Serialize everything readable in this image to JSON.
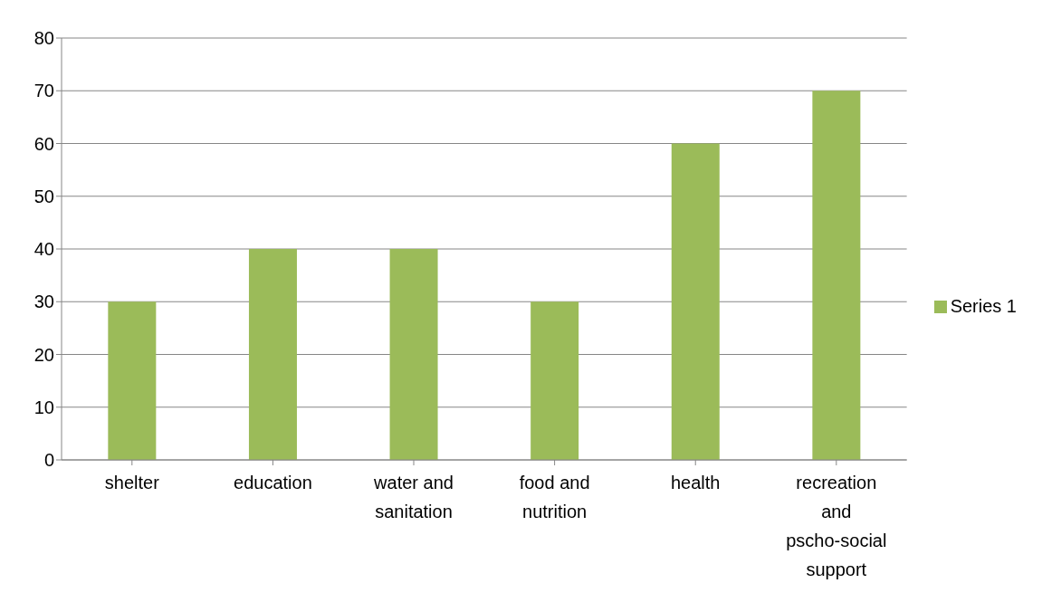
{
  "chart_data": {
    "type": "bar",
    "categories": [
      "shelter",
      "education",
      "water and sanitation",
      "food and nutrition",
      "health",
      "recreation and pscho-social support"
    ],
    "series": [
      {
        "name": "Series 1",
        "color": "#9bbb59",
        "values": [
          30,
          40,
          40,
          30,
          60,
          70
        ]
      }
    ],
    "ylim": [
      0,
      80
    ],
    "yticks": [
      0,
      10,
      20,
      30,
      40,
      50,
      60,
      70,
      80
    ],
    "grid": "y",
    "legend": "right"
  }
}
